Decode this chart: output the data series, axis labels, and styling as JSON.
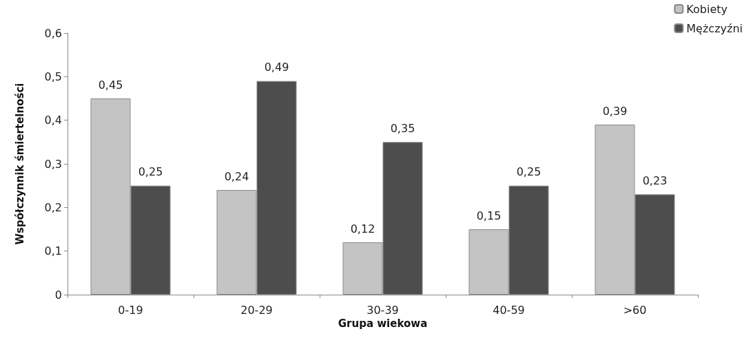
{
  "chart_data": {
    "type": "bar",
    "xlabel": "Grupa wiekowa",
    "ylabel": "Współczynnik śmiertelności",
    "categories": [
      "0-19",
      "20-29",
      "30-39",
      "40-59",
      ">60"
    ],
    "series": [
      {
        "name": "Kobiety",
        "color": "#c4c4c4",
        "values": [
          0.45,
          0.24,
          0.12,
          0.15,
          0.39
        ],
        "value_labels": [
          "0,45",
          "0,24",
          "0,12",
          "0,15",
          "0,39"
        ]
      },
      {
        "name": "Mężczyźni",
        "color": "#4d4d4d",
        "values": [
          0.25,
          0.49,
          0.35,
          0.25,
          0.23
        ],
        "value_labels": [
          "0,25",
          "0,49",
          "0,35",
          "0,25",
          "0,23"
        ]
      }
    ],
    "ylim": [
      0,
      0.6
    ],
    "yticks": [
      0,
      {
        "value": 0.1,
        "label": "0,1"
      },
      {
        "value": 0.2,
        "label": "0,2"
      },
      {
        "value": 0.3,
        "label": "0,3"
      },
      {
        "value": 0.4,
        "label": "0,4"
      },
      {
        "value": 0.5,
        "label": "0,5"
      },
      {
        "value": 0.6,
        "label": "0,6"
      }
    ],
    "grid": false,
    "legend": "top right"
  }
}
